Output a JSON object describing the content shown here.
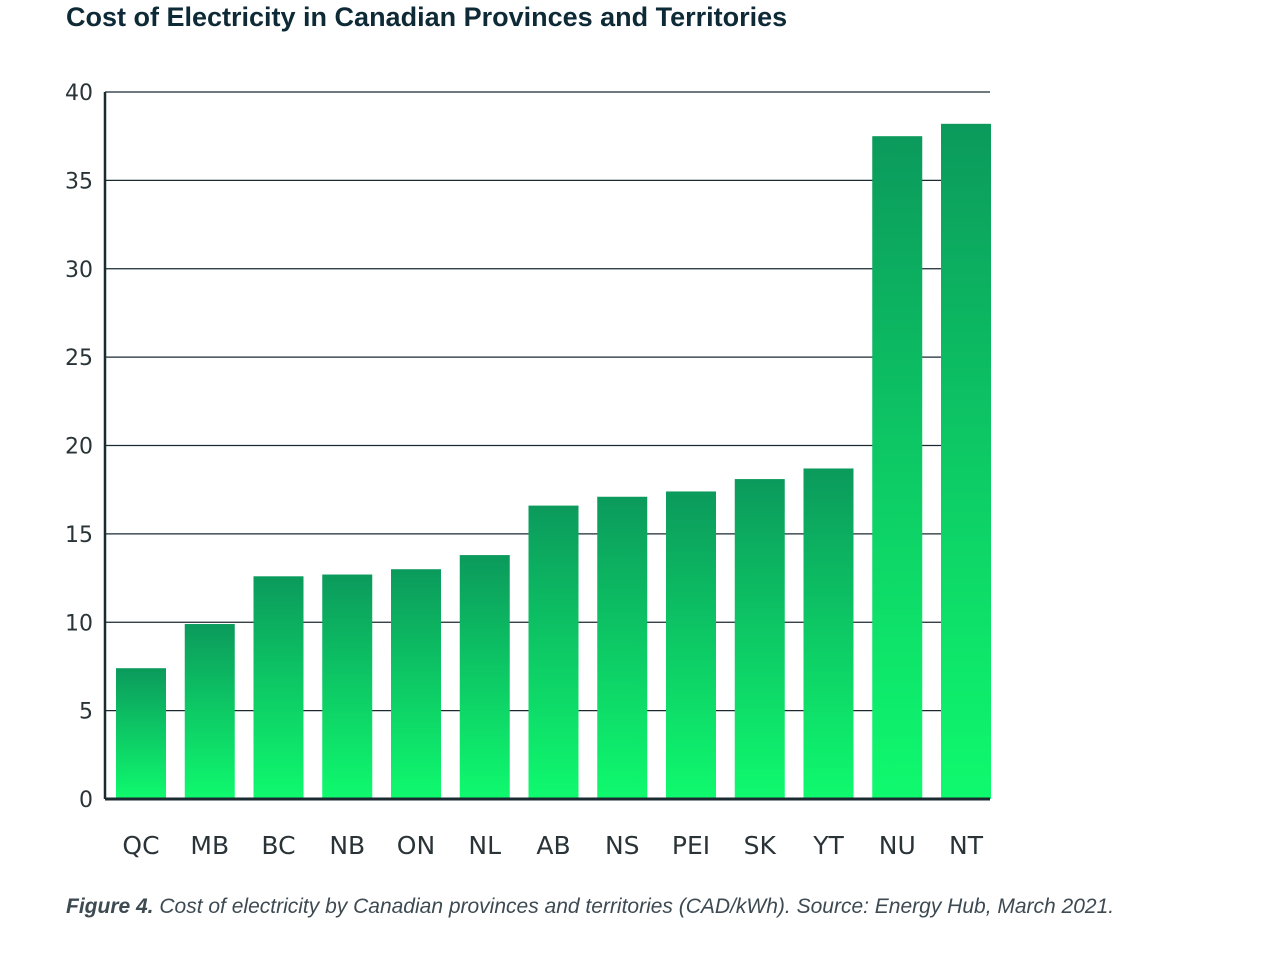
{
  "chart_data": {
    "type": "bar",
    "title": "Cost of Electricity in Canadian Provinces and Territories",
    "categories": [
      "QC",
      "MB",
      "BC",
      "NB",
      "ON",
      "NL",
      "AB",
      "NS",
      "PEI",
      "SK",
      "YT",
      "NU",
      "NT"
    ],
    "values": [
      7.4,
      9.9,
      12.6,
      12.7,
      13.0,
      13.8,
      16.6,
      17.1,
      17.4,
      18.1,
      18.7,
      37.5,
      38.2
    ],
    "series": [
      {
        "name": "Cost of electricity (CAD/kWh)",
        "values": [
          7.4,
          9.9,
          12.6,
          12.7,
          13.0,
          13.8,
          16.6,
          17.1,
          17.4,
          18.1,
          18.7,
          37.5,
          38.2
        ]
      }
    ],
    "yticks": [
      0,
      5,
      10,
      15,
      20,
      25,
      30,
      35,
      40
    ],
    "ylim": [
      0,
      40
    ],
    "xlabel": "",
    "ylabel": "",
    "grid": true,
    "legend": "none"
  },
  "caption": {
    "label": "Figure 4.",
    "text": " Cost of electricity by Canadian provinces and territories (CAD/kWh). Source: Energy Hub, March 2021."
  },
  "colors": {
    "bar_top": "#0b9a5c",
    "bar_bottom": "#0ffa6e",
    "axis": "#1a2a30",
    "title": "#0e2a36",
    "caption": "#3d4a52"
  }
}
